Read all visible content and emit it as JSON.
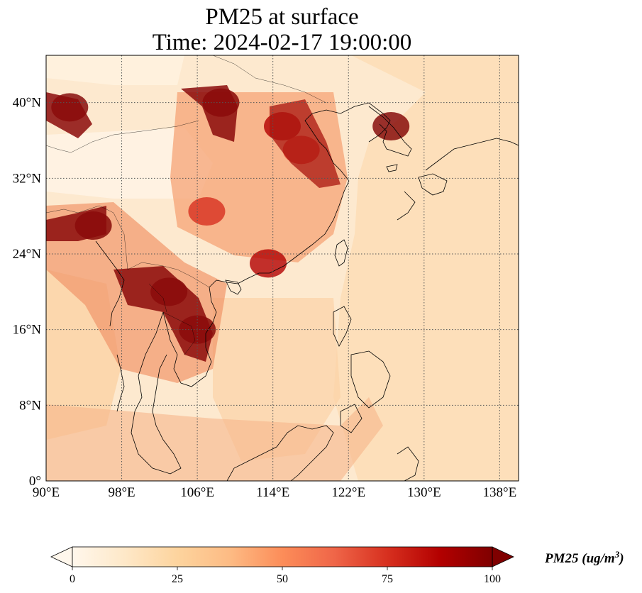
{
  "title": {
    "line1": "PM25 at surface",
    "line2": "Time: 2024-02-17 19:00:00"
  },
  "map": {
    "lon_range": [
      90,
      140
    ],
    "lat_range": [
      0,
      45
    ],
    "lon_ticks": [
      {
        "value": 90,
        "label": "90°E"
      },
      {
        "value": 98,
        "label": "98°E"
      },
      {
        "value": 106,
        "label": "106°E"
      },
      {
        "value": 114,
        "label": "114°E"
      },
      {
        "value": 122,
        "label": "122°E"
      },
      {
        "value": 130,
        "label": "130°E"
      },
      {
        "value": 138,
        "label": "138°E"
      }
    ],
    "lat_ticks": [
      {
        "value": 0,
        "label": "0°"
      },
      {
        "value": 8,
        "label": "8°N"
      },
      {
        "value": 16,
        "label": "16°N"
      },
      {
        "value": 24,
        "label": "24°N"
      },
      {
        "value": 32,
        "label": "32°N"
      },
      {
        "value": 40,
        "label": "40°N"
      }
    ],
    "gridlines": true,
    "colormap": "OrRd",
    "hotspots": [
      {
        "lon": 92.5,
        "lat": 39.5,
        "value": 100
      },
      {
        "lon": 108.5,
        "lat": 40.0,
        "value": 100
      },
      {
        "lon": 115.0,
        "lat": 37.5,
        "value": 85
      },
      {
        "lon": 117.0,
        "lat": 35.0,
        "value": 80
      },
      {
        "lon": 126.5,
        "lat": 37.5,
        "value": 100
      },
      {
        "lon": 95.0,
        "lat": 27.0,
        "value": 100
      },
      {
        "lon": 103.0,
        "lat": 20.0,
        "value": 100
      },
      {
        "lon": 106.0,
        "lat": 16.0,
        "value": 100
      },
      {
        "lon": 113.5,
        "lat": 23.0,
        "value": 90
      },
      {
        "lon": 107.0,
        "lat": 28.5,
        "value": 70
      }
    ]
  },
  "colorbar": {
    "min": 0,
    "max": 100,
    "extend": "both",
    "ticks": [
      {
        "value": 0,
        "label": "0"
      },
      {
        "value": 25,
        "label": "25"
      },
      {
        "value": 50,
        "label": "50"
      },
      {
        "value": 75,
        "label": "75"
      },
      {
        "value": 100,
        "label": "100"
      }
    ],
    "label": "PM25 (ug/m",
    "label_sup": "3",
    "label_close": ")",
    "colors": [
      "#fff7ec",
      "#fee8c8",
      "#fdd49e",
      "#fdbb84",
      "#fc8d59",
      "#ef6548",
      "#d7301f",
      "#b30000",
      "#7f0000"
    ]
  }
}
